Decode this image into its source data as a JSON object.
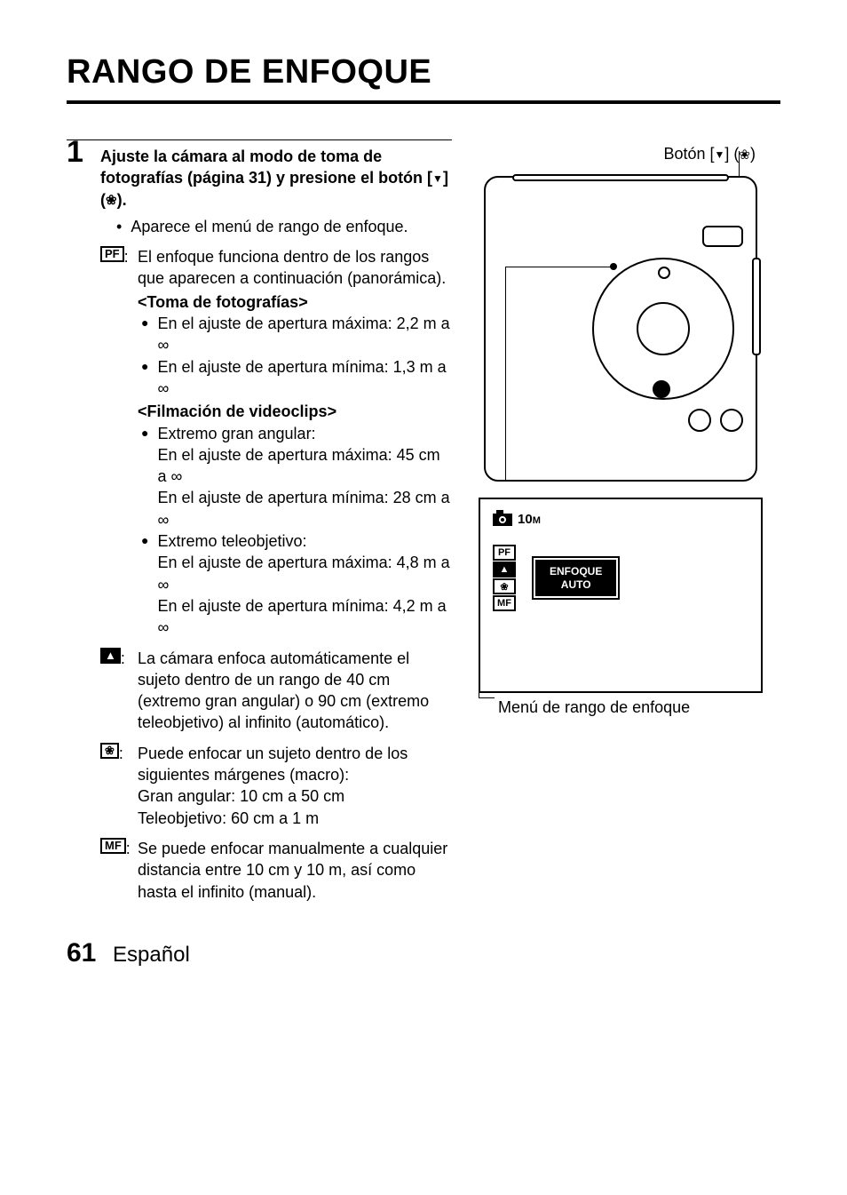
{
  "title": "RANGO DE ENFOQUE",
  "step": {
    "num": "1",
    "head_prefix": "Ajuste la cámara al modo de toma de fotografías (página 31) y presione el botón [",
    "head_tri": "▼",
    "head_mid": "] (",
    "head_flower": "❀",
    "head_suffix": ").",
    "sub_bullet": "Aparece el menú de rango de enfoque."
  },
  "modes": {
    "pf": {
      "icon": "PF",
      "lead": "El enfoque funciona dentro de los rangos que aparecen a continuación (panorámica).",
      "photo_head": "<Toma de fotografías>",
      "photo_b1": "En el ajuste de apertura máxima: 2,2 m a ∞",
      "photo_b2": "En el ajuste de apertura mínima: 1,3 m a ∞",
      "video_head": "<Filmación de videoclips>",
      "vb1_label": "Extremo gran angular:",
      "vb1_l1": "En el ajuste de apertura máxima: 45 cm a ∞",
      "vb1_l2": "En el ajuste de apertura mínima: 28 cm a ∞",
      "vb2_label": "Extremo teleobjetivo:",
      "vb2_l1": "En el ajuste de apertura máxima: 4,8 m a ∞",
      "vb2_l2": "En el ajuste de apertura mínima: 4,2 m a ∞"
    },
    "auto": {
      "icon": "▲",
      "text": "La cámara enfoca automáticamente el sujeto dentro de un rango de 40 cm (extremo gran angular) o 90 cm (extremo teleobjetivo) al infinito (automático)."
    },
    "macro": {
      "icon": "❀",
      "lead": "Puede enfocar un sujeto dentro de los siguientes márgenes (macro):",
      "l1": "Gran angular: 10 cm a 50 cm",
      "l2": "Teleobjetivo: 60 cm a 1 m"
    },
    "mf": {
      "icon": "MF",
      "text": "Se puede enfocar manualmente a cualquier distancia entre 10 cm y 10 m, así como hasta el infinito (manual)."
    }
  },
  "right": {
    "button_label_prefix": "Botón [",
    "button_tri": "▼",
    "button_mid": "] (",
    "button_flower": "❀",
    "button_suffix": ")",
    "lcd_10": "10",
    "lcd_m": "M",
    "lcd_pf": "PF",
    "lcd_auto_ic": "▲",
    "lcd_macro_ic": "❀",
    "lcd_mf": "MF",
    "lcd_enfoque": "ENFOQUE",
    "lcd_auto": "AUTO",
    "lcd_caption": "Menú de rango de enfoque"
  },
  "footer": {
    "page": "61",
    "lang": "Español"
  },
  "colors": {
    "text": "#000000",
    "bg": "#ffffff",
    "lcd_sel_bg": "#000000",
    "lcd_sel_fg": "#ffffff"
  }
}
